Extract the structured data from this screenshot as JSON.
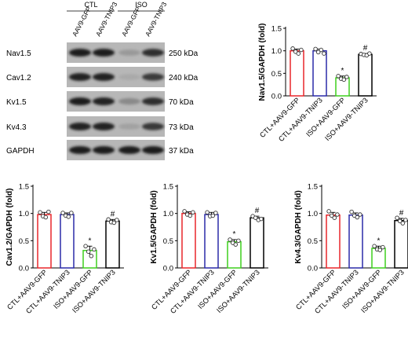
{
  "blot": {
    "groups": [
      {
        "label": "CTL",
        "lanes": [
          "AAV9-GFP",
          "AAV9-TNIP3"
        ]
      },
      {
        "label": "ISO",
        "lanes": [
          "AAV9-GFP",
          "AAV9-TNIP3"
        ]
      }
    ],
    "rows": [
      {
        "protein": "Nav1.5",
        "size": "250 kDa",
        "intensity": [
          1.0,
          1.0,
          0.4,
          0.92
        ]
      },
      {
        "protein": "Cav1.2",
        "size": "240 kDa",
        "intensity": [
          0.98,
          0.98,
          0.32,
          0.86
        ]
      },
      {
        "protein": "Kv1.5",
        "size": "70 kDa",
        "intensity": [
          1.0,
          0.98,
          0.48,
          0.92
        ]
      },
      {
        "protein": "Kv4.3",
        "size": "73 kDa",
        "intensity": [
          0.97,
          0.97,
          0.36,
          0.87
        ]
      },
      {
        "protein": "GAPDH",
        "size": "37 kDa",
        "intensity": [
          1.0,
          1.0,
          1.0,
          1.0
        ]
      }
    ]
  },
  "colors": {
    "bar1": "#e8262a",
    "bar2": "#2a2aa8",
    "bar3": "#3ecf1d",
    "bar4": "#000000"
  },
  "chart_data": [
    {
      "type": "bar",
      "ylabel": "Nav1.5/GAPDH (fold)",
      "categories": [
        "CTL+AAV9-GFP",
        "CTL+AAV9-TNIP3",
        "ISO+AAV9-GFP",
        "ISO+AAV9-TNIP3"
      ],
      "values": [
        1.0,
        1.0,
        0.4,
        0.92
      ],
      "errors": [
        0.04,
        0.04,
        0.04,
        0.02
      ],
      "annotations": [
        "",
        "",
        "*",
        "#"
      ],
      "points": [
        [
          1.05,
          0.98,
          0.94,
          1.02
        ],
        [
          1.04,
          0.97,
          1.02,
          0.94
        ],
        [
          0.44,
          0.38,
          0.36,
          0.42
        ],
        [
          0.93,
          0.91,
          0.9,
          0.94
        ]
      ],
      "ylim": [
        0,
        1.5
      ],
      "yticks": [
        "0.0",
        "0.5",
        "1.0",
        "1.5"
      ]
    },
    {
      "type": "bar",
      "ylabel": "Cav1.2/GAPDH (fold)",
      "categories": [
        "CTL+AAV9-GFP",
        "CTL+AAV9-TNIP3",
        "ISO+AAV9-GFP",
        "ISO+AAV9-TNIP3"
      ],
      "values": [
        0.98,
        0.98,
        0.32,
        0.86
      ],
      "errors": [
        0.04,
        0.03,
        0.08,
        0.03
      ],
      "annotations": [
        "",
        "",
        "*",
        "#"
      ],
      "points": [
        [
          1.02,
          0.95,
          0.93,
          1.03
        ],
        [
          1.01,
          0.96,
          0.94,
          1.01
        ],
        [
          0.4,
          0.3,
          0.22,
          0.34
        ],
        [
          0.89,
          0.84,
          0.83,
          0.88
        ]
      ],
      "ylim": [
        0,
        1.5
      ],
      "yticks": [
        "0.0",
        "0.5",
        "1.0",
        "1.5"
      ]
    },
    {
      "type": "bar",
      "ylabel": "Kv1.5/GAPDH (fold)",
      "categories": [
        "CTL+AAV9-GFP",
        "CTL+AAV9-TNIP3",
        "ISO+AAV9-GFP",
        "ISO+AAV9-TNIP3"
      ],
      "values": [
        1.0,
        0.98,
        0.48,
        0.92
      ],
      "errors": [
        0.03,
        0.04,
        0.04,
        0.03
      ],
      "annotations": [
        "",
        "",
        "*",
        "#"
      ],
      "points": [
        [
          1.04,
          0.98,
          0.96,
          1.02
        ],
        [
          1.02,
          0.95,
          0.96,
          1.01
        ],
        [
          0.52,
          0.46,
          0.43,
          0.5
        ],
        [
          0.95,
          0.92,
          0.88,
          0.9
        ]
      ],
      "ylim": [
        0,
        1.5
      ],
      "yticks": [
        "0.0",
        "0.5",
        "1.0",
        "1.5"
      ]
    },
    {
      "type": "bar",
      "ylabel": "Kv4.3/GAPDH (fold)",
      "categories": [
        "CTL+AAV9-GFP",
        "CTL+AAV9-TNIP3",
        "ISO+AAV9-GFP",
        "ISO+AAV9-TNIP3"
      ],
      "values": [
        0.97,
        0.97,
        0.36,
        0.87
      ],
      "errors": [
        0.05,
        0.04,
        0.04,
        0.04
      ],
      "annotations": [
        "",
        "",
        "*",
        "#"
      ],
      "points": [
        [
          1.04,
          0.96,
          0.92,
          0.98
        ],
        [
          1.03,
          0.96,
          0.93,
          0.98
        ],
        [
          0.4,
          0.34,
          0.33,
          0.38
        ],
        [
          0.92,
          0.86,
          0.82,
          0.88
        ]
      ],
      "ylim": [
        0,
        1.5
      ],
      "yticks": [
        "0.0",
        "0.5",
        "1.0",
        "1.5"
      ]
    }
  ]
}
